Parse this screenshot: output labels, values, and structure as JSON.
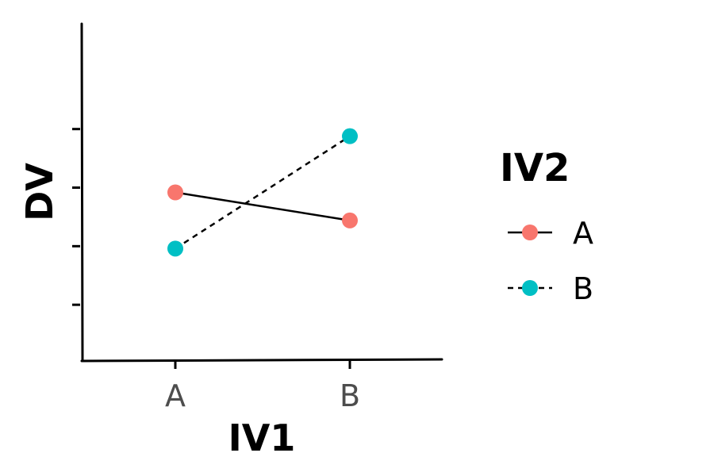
{
  "chart_data": {
    "type": "line",
    "categories": [
      "A",
      "B"
    ],
    "xlabel": "IV1",
    "ylabel": "DV",
    "ylim": [
      0,
      6
    ],
    "y_tick_values": [
      1,
      2,
      3,
      4
    ],
    "y_tick_labels_shown": false,
    "grid": false,
    "legend": {
      "title": "IV2",
      "position": "right",
      "entries": [
        {
          "label": "A",
          "color": "#F8766D",
          "linetype": "solid"
        },
        {
          "label": "B",
          "color": "#00BFC4",
          "linetype": "dashed"
        }
      ]
    },
    "series": [
      {
        "name": "A",
        "values": [
          3,
          2.5
        ],
        "color": "#F8766D",
        "line_color": "#000000",
        "linetype": "solid"
      },
      {
        "name": "B",
        "values": [
          2,
          4
        ],
        "color": "#00BFC4",
        "line_color": "#000000",
        "linetype": "dashed"
      }
    ]
  }
}
